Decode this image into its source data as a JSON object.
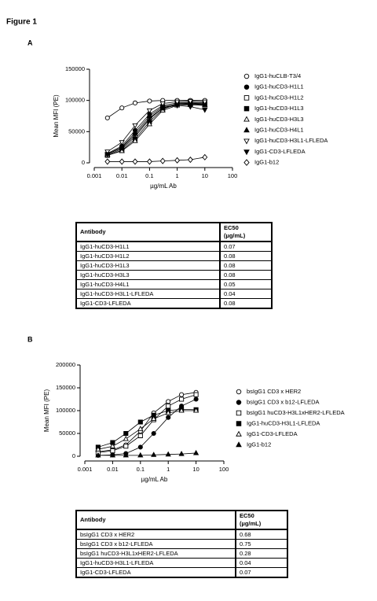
{
  "figure_title": "Figure 1",
  "chart_data": [
    {
      "type": "line",
      "panel": "A",
      "y_label": "Mean MFI (PE)",
      "x_label": "µg/mL Ab",
      "xscale": "log",
      "xlim": [
        0.001,
        100
      ],
      "xticks": [
        0.001,
        0.01,
        0.1,
        1,
        10,
        100
      ],
      "ylim": [
        0,
        150000
      ],
      "yticks": [
        0,
        50000,
        100000,
        150000
      ],
      "x": [
        0.003,
        0.01,
        0.03,
        0.1,
        0.3,
        1,
        3,
        10
      ],
      "series": [
        {
          "name": "IgG1-huCLB-T3/4",
          "color": "#000000",
          "marker": "circle",
          "filled": false,
          "values": [
            72000,
            88000,
            96000,
            99000,
            100000,
            100000,
            100000,
            100000
          ]
        },
        {
          "name": "IgG1-huCD3-H1L1",
          "color": "#000000",
          "marker": "circle",
          "filled": true,
          "values": [
            15000,
            27000,
            52000,
            78000,
            92000,
            96000,
            97000,
            96000
          ]
        },
        {
          "name": "IgG1-huCD3-H1L2",
          "color": "#000000",
          "marker": "square",
          "filled": false,
          "values": [
            13000,
            22000,
            42000,
            70000,
            88000,
            95000,
            96000,
            95000
          ]
        },
        {
          "name": "IgG1-huCD3-H1L3",
          "color": "#000000",
          "marker": "square",
          "filled": true,
          "values": [
            12000,
            20000,
            38000,
            66000,
            86000,
            94000,
            95000,
            94000
          ]
        },
        {
          "name": "IgG1-huCD3-H3L3",
          "color": "#000000",
          "marker": "triangle",
          "filled": false,
          "values": [
            12000,
            19000,
            35000,
            62000,
            84000,
            92000,
            93000,
            92000
          ]
        },
        {
          "name": "IgG1-huCD3-H4L1",
          "color": "#000000",
          "marker": "triangle",
          "filled": true,
          "values": [
            14000,
            25000,
            48000,
            75000,
            90000,
            94000,
            94000,
            93000
          ]
        },
        {
          "name": "IgG1-huCD3-H3L1-LFLEDA",
          "color": "#000000",
          "marker": "triangle-down",
          "filled": false,
          "values": [
            18000,
            33000,
            60000,
            84000,
            95000,
            98000,
            99000,
            98000
          ]
        },
        {
          "name": "IgG1-CD3-LFLEDA",
          "color": "#000000",
          "marker": "triangle-down",
          "filled": true,
          "values": [
            14000,
            24000,
            45000,
            72000,
            88000,
            92000,
            90000,
            85000
          ]
        },
        {
          "name": "IgG1-b12",
          "color": "#000000",
          "marker": "diamond",
          "filled": false,
          "values": [
            2000,
            2000,
            2000,
            2000,
            3000,
            4000,
            5000,
            9000
          ]
        }
      ]
    },
    {
      "type": "line",
      "panel": "B",
      "y_label": "Mean MFI (PE)",
      "x_label": "µg/mL Ab",
      "xscale": "log",
      "xlim": [
        0.001,
        100
      ],
      "xticks": [
        0.001,
        0.01,
        0.1,
        1,
        10,
        100
      ],
      "ylim": [
        0,
        200000
      ],
      "yticks": [
        0,
        50000,
        100000,
        150000,
        200000
      ],
      "x": [
        0.003,
        0.01,
        0.03,
        0.1,
        0.3,
        1,
        3,
        10
      ],
      "series": [
        {
          "name": "bsIgG1 CD3 x HER2",
          "color": "#000000",
          "marker": "circle",
          "filled": false,
          "values": [
            10000,
            14000,
            25000,
            55000,
            95000,
            120000,
            135000,
            140000
          ]
        },
        {
          "name": "bsIgG1 CD3 x b12-LFLEDA",
          "color": "#000000",
          "marker": "circle",
          "filled": true,
          "values": [
            2000,
            3000,
            6000,
            20000,
            50000,
            85000,
            110000,
            125000
          ]
        },
        {
          "name": "bsIgG1 huCD3-H3L1xHER2-LFLEDA",
          "color": "#000000",
          "marker": "square",
          "filled": false,
          "values": [
            8000,
            12000,
            22000,
            45000,
            80000,
            110000,
            125000,
            135000
          ]
        },
        {
          "name": "IgG1-huCD3-H3L1-LFLEDA",
          "color": "#000000",
          "marker": "square",
          "filled": true,
          "values": [
            20000,
            30000,
            50000,
            75000,
            90000,
            100000,
            103000,
            102000
          ]
        },
        {
          "name": "IgG1-CD3-LFLEDA",
          "color": "#000000",
          "marker": "triangle",
          "filled": false,
          "values": [
            15000,
            22000,
            38000,
            60000,
            82000,
            95000,
            100000,
            100000
          ]
        },
        {
          "name": "IgG1-b12",
          "color": "#000000",
          "marker": "triangle",
          "filled": true,
          "values": [
            2000,
            2000,
            2000,
            2000,
            3000,
            4000,
            5000,
            7000
          ]
        }
      ]
    }
  ],
  "tables": [
    {
      "header": [
        "Antibody",
        "EC50",
        "(µg/mL)"
      ],
      "rows": [
        [
          "IgG1-huCD3-H1L1",
          "0.07"
        ],
        [
          "IgG1-huCD3-H1L2",
          "0.08"
        ],
        [
          "IgG1-huCD3-H1L3",
          "0.08"
        ],
        [
          "IgG1-huCD3-H3L3",
          "0.08"
        ],
        [
          "IgG1-huCD3-H4L1",
          "0.05"
        ],
        [
          "IgG1-huCD3-H3L1-LFLEDA",
          "0.04"
        ],
        [
          "IgG1-CD3-LFLEDA",
          "0.08"
        ]
      ]
    },
    {
      "header": [
        "Antibody",
        "EC50",
        "(µg/mL)"
      ],
      "rows": [
        [
          "bsIgG1 CD3 x HER2",
          "0.68"
        ],
        [
          "bsIgG1 CD3 x b12-LFLEDA",
          "0.75"
        ],
        [
          "bsIgG1 huCD3-H3L1xHER2-LFLEDA",
          "0.28"
        ],
        [
          "IgG1-huCD3-H3L1-LFLEDA",
          "0.04"
        ],
        [
          "IgG1-CD3-LFLEDA",
          "0.07"
        ]
      ]
    }
  ]
}
